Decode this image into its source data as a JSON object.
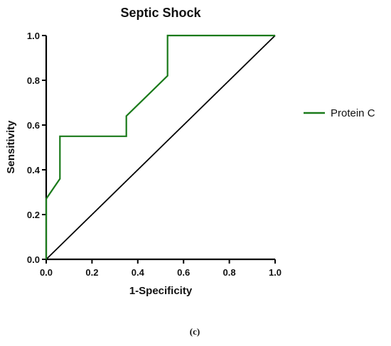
{
  "chart_data": {
    "type": "line",
    "title": "Septic Shock",
    "xlabel": "1-Specificity",
    "ylabel": "Sensitivity",
    "xlim": [
      0,
      1
    ],
    "ylim": [
      0,
      1
    ],
    "x_ticks": [
      "0.0",
      "0.2",
      "0.4",
      "0.6",
      "0.8",
      "1.0"
    ],
    "y_ticks": [
      "0.0",
      "0.2",
      "0.4",
      "0.6",
      "0.8",
      "1.0"
    ],
    "grid": false,
    "legend_position": "right",
    "series": [
      {
        "name": "Protein C",
        "color": "#1a7a1a",
        "x": [
          0,
          0,
          0.06,
          0.06,
          0.35,
          0.35,
          0.53,
          0.53,
          0.73,
          1.0
        ],
        "y": [
          0,
          0.27,
          0.36,
          0.55,
          0.55,
          0.64,
          0.82,
          1.0,
          1.0,
          1.0
        ]
      },
      {
        "color": "#000000",
        "x": [
          0,
          1
        ],
        "y": [
          0,
          1
        ]
      }
    ]
  },
  "caption": "(c)"
}
